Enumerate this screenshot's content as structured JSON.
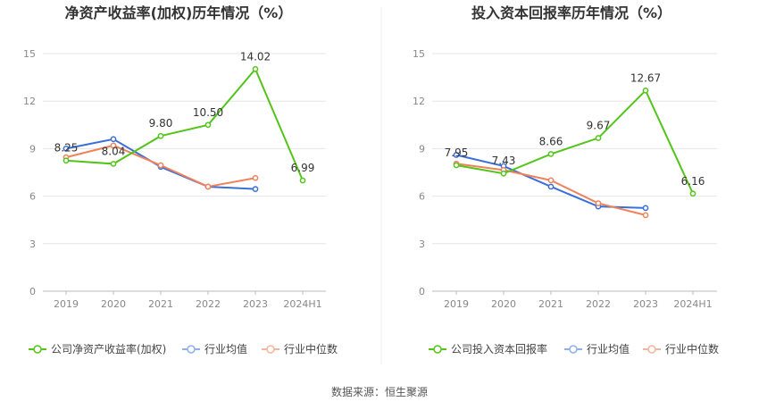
{
  "colors": {
    "company": "#52c41a",
    "industry_avg": "#3a6fd8",
    "industry_median": "#f0825a",
    "legend_avg": "#8fb0ea",
    "legend_median": "#f5b59c",
    "grid": "#e6e6e6",
    "axis_text": "#888888",
    "title": "#333333"
  },
  "source": "数据来源：恒生聚源",
  "chart_data": [
    {
      "type": "line",
      "title": "净资产收益率(加权)历年情况（%）",
      "categories": [
        "2019",
        "2020",
        "2021",
        "2022",
        "2023",
        "2024H1"
      ],
      "ylim": [
        0,
        15
      ],
      "yticks": [
        0,
        3,
        6,
        9,
        12,
        15
      ],
      "grid": true,
      "legend_position": "bottom",
      "series": [
        {
          "name": "公司净资产收益率(加权)",
          "key": "company",
          "values": [
            8.25,
            8.04,
            9.8,
            10.5,
            14.02,
            6.99
          ],
          "labels": [
            "8.25",
            "8.04",
            "9.80",
            "10.50",
            "14.02",
            "6.99"
          ]
        },
        {
          "name": "行业均值",
          "key": "industry_avg",
          "values": [
            9.0,
            9.6,
            7.85,
            6.6,
            6.45,
            null
          ]
        },
        {
          "name": "行业中位数",
          "key": "industry_median",
          "values": [
            8.45,
            9.2,
            7.95,
            6.6,
            7.15,
            null
          ]
        }
      ]
    },
    {
      "type": "line",
      "title": "投入资本回报率历年情况（%）",
      "categories": [
        "2019",
        "2020",
        "2021",
        "2022",
        "2023",
        "2024H1"
      ],
      "ylim": [
        0,
        15
      ],
      "yticks": [
        0,
        3,
        6,
        9,
        12,
        15
      ],
      "grid": true,
      "legend_position": "bottom",
      "series": [
        {
          "name": "公司投入资本回报率",
          "key": "company",
          "values": [
            7.95,
            7.43,
            8.66,
            9.67,
            12.67,
            6.16
          ],
          "labels": [
            "7.95",
            "7.43",
            "8.66",
            "9.67",
            "12.67",
            "6.16"
          ]
        },
        {
          "name": "行业均值",
          "key": "industry_avg",
          "values": [
            8.6,
            7.9,
            6.6,
            5.35,
            5.25,
            null
          ]
        },
        {
          "name": "行业中位数",
          "key": "industry_median",
          "values": [
            8.05,
            7.65,
            7.0,
            5.55,
            4.8,
            null
          ]
        }
      ]
    }
  ]
}
